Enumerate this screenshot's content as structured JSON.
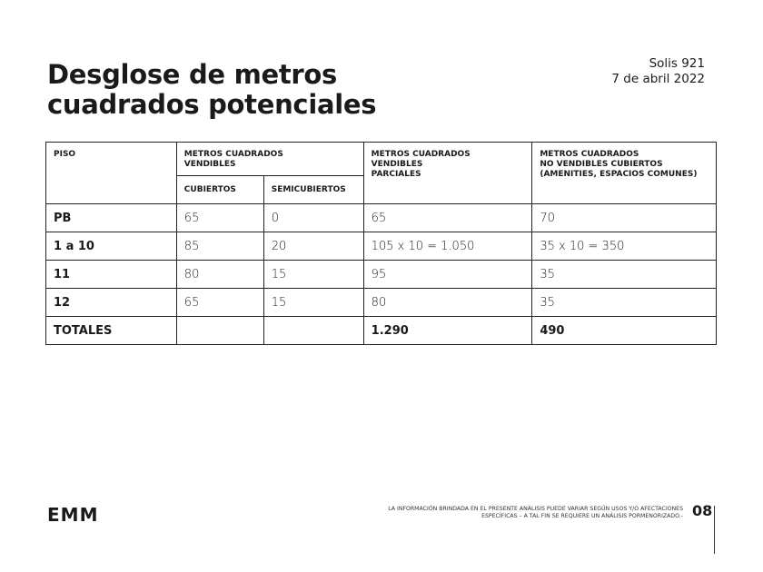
{
  "title_lines": [
    "Desglose de metros",
    "cuadrados potenciales"
  ],
  "meta": {
    "project": "Solis 921",
    "date": "7 de abril 2022"
  },
  "table": {
    "headers": {
      "piso": "PISO",
      "vendibles": [
        "METROS CUADRADOS",
        "VENDIBLES"
      ],
      "cubiertos": "CUBIERTOS",
      "semicubiertos": "SEMICUBIERTOS",
      "parciales": [
        "METROS CUADRADOS",
        "VENDIBLES",
        "PARCIALES"
      ],
      "no_vendibles": [
        "METROS CUADRADOS",
        "NO VENDIBLES CUBIERTOS",
        "(AMENITIES, ESPACIOS COMUNES)"
      ]
    },
    "rows": [
      [
        "PB",
        "65",
        "0",
        "65",
        "70"
      ],
      [
        "1 a 10",
        "85",
        "20",
        "105 x 10 = 1.050",
        "35 x 10 = 350"
      ],
      [
        "11",
        "80",
        "15",
        "95",
        "35"
      ],
      [
        "12",
        "65",
        "15",
        "80",
        "35"
      ],
      [
        "TOTALES",
        "",
        "",
        "1.290",
        "490"
      ]
    ]
  },
  "footer": {
    "logo": "EMM",
    "note_lines": [
      "LA INFORMACIÓN BRINDADA EN EL PRESENTE ANÁLISIS PUEDE VARIAR SEGÚN USOS Y/O AFECTACIONES",
      "ESPECÍFICAS – A TAL FIN SE REQUIERE UN ANÁLISIS PORMENORIZADO.-"
    ],
    "page": "08"
  }
}
